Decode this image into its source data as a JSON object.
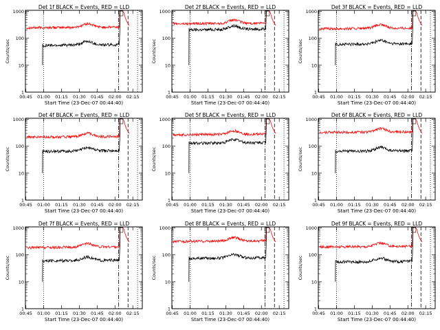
{
  "chart_data": {
    "type": "line",
    "layout": "3x3 grid of panels",
    "x_axis": {
      "label": "Start Time (23-Dec-07 00:44:40)",
      "ticks": [
        "00:45",
        "01:00",
        "01:15",
        "01:30",
        "01:45",
        "02:00",
        "02:15"
      ],
      "range": [
        "00:44:40",
        "02:23:00"
      ]
    },
    "y_axis": {
      "label": "Counts/sec",
      "scale": "log",
      "ticks": [
        "1",
        "10",
        "100",
        "1000"
      ],
      "range": [
        1,
        1100
      ]
    },
    "vertical_markers": [
      {
        "time": "01:00",
        "style": "dotted"
      },
      {
        "time": "02:03",
        "style": "dash-dot"
      },
      {
        "time": "02:11",
        "style": "dashed"
      },
      {
        "time": "02:19",
        "style": "dotted"
      }
    ],
    "series_colors": {
      "events": "#000000",
      "lld": "#ff0000"
    },
    "panels": [
      {
        "title": "Det 1f BLACK = Events, RED = LLD",
        "events_level": 55,
        "lld_level": 250
      },
      {
        "title": "Det 2f BLACK = Events, RED = LLD",
        "events_level": 210,
        "lld_level": 350
      },
      {
        "title": "Det 3f BLACK = Events, RED = LLD",
        "events_level": 60,
        "lld_level": 230
      },
      {
        "title": "Det 4f BLACK = Events, RED = LLD",
        "events_level": 65,
        "lld_level": 220
      },
      {
        "title": "Det 5f BLACK = Events, RED = LLD",
        "events_level": 130,
        "lld_level": 270
      },
      {
        "title": "Det 6f BLACK = Events, RED = LLD",
        "events_level": 65,
        "lld_level": 330
      },
      {
        "title": "Det 7f BLACK = Events, RED = LLD",
        "events_level": 60,
        "lld_level": 190
      },
      {
        "title": "Det 8f BLACK = Events, RED = LLD",
        "events_level": 75,
        "lld_level": 320
      },
      {
        "title": "Det 9f BLACK = Events, RED = LLD",
        "events_level": 55,
        "lld_level": 200
      }
    ],
    "grid": false,
    "legend": "in title"
  }
}
